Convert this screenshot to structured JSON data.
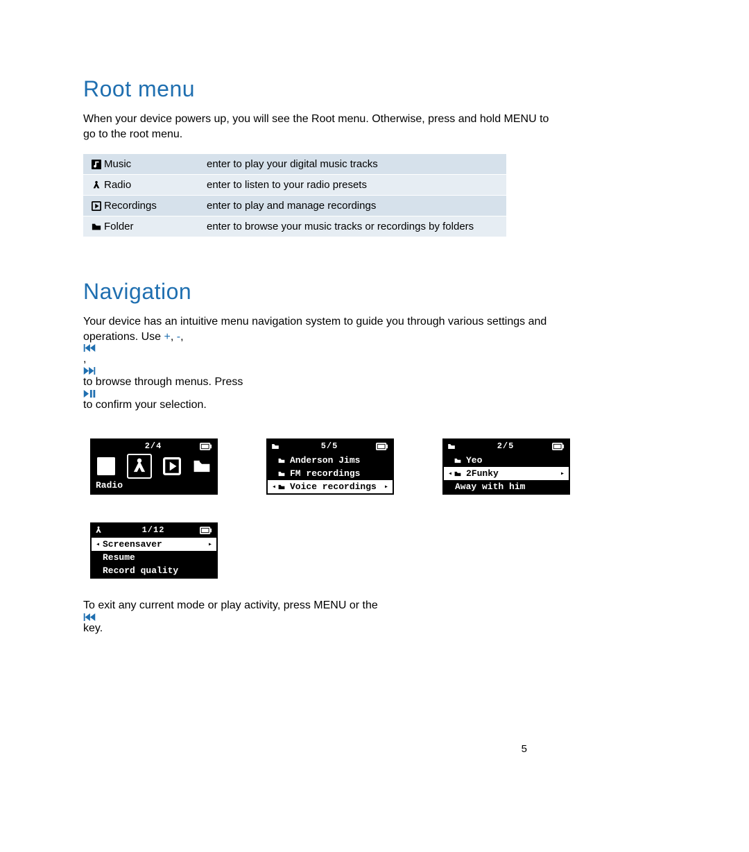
{
  "page_number": "5",
  "section1": {
    "heading": "Root menu",
    "para": "When your device powers up, you will see the Root menu. Otherwise, press and hold MENU to go to the root menu."
  },
  "section2": {
    "heading": "Navigation",
    "para_pre": "Your device has an intuitive menu navigation system to guide you through various settings and operations.  Use  ",
    "para_mid": " to browse through menus. Press ",
    "para_post": " to confirm your selection.",
    "exit_pre": "To exit any current mode or play activity, press MENU or the ",
    "exit_post": " key."
  },
  "features": [
    {
      "icon": "music",
      "name": "Music",
      "desc": "enter to play your digital music tracks"
    },
    {
      "icon": "radio",
      "name": "Radio",
      "desc": "enter to listen to your radio presets"
    },
    {
      "icon": "rec",
      "name": "Recordings",
      "desc": "enter to play and manage recordings"
    },
    {
      "icon": "folder",
      "name": "Folder",
      "desc": "enter to browse your music tracks or recordings by folders"
    }
  ],
  "screens": {
    "root": {
      "counter": "2/4",
      "label": "Radio"
    },
    "folders": {
      "counter": "5/5",
      "rows": [
        {
          "icon": "folder",
          "text": "Anderson Jims",
          "sel": false
        },
        {
          "icon": "folder",
          "text": "FM recordings",
          "sel": false
        },
        {
          "icon": "folder",
          "text": "Voice recordings",
          "sel": true
        }
      ]
    },
    "songs": {
      "counter": "2/5",
      "header_icon": "folder",
      "rows": [
        {
          "icon": "folder",
          "text": "Yeo",
          "sel": false,
          "indent": true
        },
        {
          "icon": "folder",
          "text": "2Funky",
          "sel": true
        },
        {
          "icon": "",
          "text": "Away with him",
          "sel": false,
          "indent": true
        }
      ]
    },
    "settings": {
      "counter": "1/12",
      "header_icon": "radio",
      "rows": [
        {
          "text": "Screensaver",
          "sel": true
        },
        {
          "text": "Resume",
          "sel": false,
          "indent": true
        },
        {
          "text": "Record quality",
          "sel": false,
          "indent": true
        }
      ]
    }
  },
  "colors": {
    "heading": "#1f6fb0",
    "row_odd": "#d6e1eb",
    "row_even": "#e6edf3"
  }
}
